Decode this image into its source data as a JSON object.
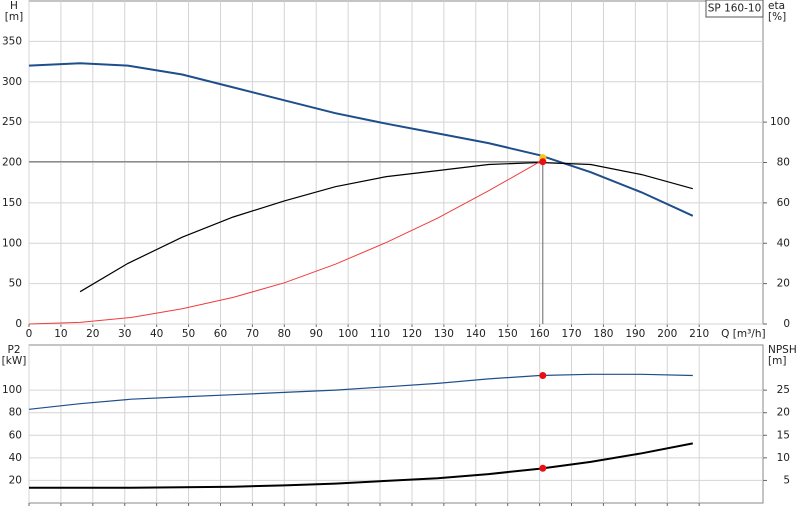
{
  "chart_data": [
    {
      "type": "line",
      "title": "SP 160-10",
      "ylabel": [
        "H",
        "[m]"
      ],
      "y2label": [
        "eta",
        "[%]"
      ],
      "xlabel": "Q [m³/h]",
      "xlim": [
        0,
        230
      ],
      "xticks": [
        0,
        10,
        20,
        30,
        40,
        50,
        60,
        70,
        80,
        90,
        100,
        110,
        120,
        130,
        140,
        150,
        160,
        170,
        180,
        190,
        200,
        210
      ],
      "ylim": [
        0,
        400
      ],
      "yticks": [
        0,
        50,
        100,
        150,
        200,
        250,
        300,
        350
      ],
      "y2lim": [
        0,
        160
      ],
      "y2ticks": [
        0,
        20,
        40,
        60,
        80,
        100
      ],
      "grid": true,
      "show_xtick_labels": true,
      "series": [
        {
          "color": "#1f4e8c",
          "width": 2,
          "x": [
            0,
            16,
            31,
            48,
            64,
            80,
            96,
            112,
            128,
            144,
            160,
            176,
            192,
            208
          ],
          "values": [
            320,
            323,
            320,
            309,
            293,
            277,
            261,
            248,
            236,
            224,
            209,
            188,
            163,
            134
          ]
        },
        {
          "color": "#000000",
          "width": 1.2,
          "axis": "y2",
          "x": [
            16,
            31,
            48,
            64,
            80,
            96,
            112,
            128,
            144,
            160,
            176,
            192,
            208
          ],
          "values": [
            16,
            30,
            43,
            53,
            61,
            68,
            73,
            76,
            79,
            80,
            79,
            74,
            67
          ]
        },
        {
          "color": "#f03c3c",
          "width": 1,
          "x": [
            0,
            16,
            32,
            48,
            64,
            80,
            96,
            112,
            128,
            144,
            161
          ],
          "values": [
            0,
            2,
            8,
            19,
            33,
            51,
            74,
            101,
            131,
            165,
            203
          ]
        }
      ],
      "points": [
        {
          "x": 161,
          "y": 206,
          "color": "#f5c518"
        },
        {
          "x": 161,
          "y": 201,
          "color": "#e81010",
          "guide": true
        }
      ]
    },
    {
      "type": "line",
      "ylabel": [
        "P2",
        "[kW]"
      ],
      "y2label": [
        "NPSH",
        "[m]"
      ],
      "xlim": [
        0,
        230
      ],
      "xticks": [
        0,
        10,
        20,
        30,
        40,
        50,
        60,
        70,
        80,
        90,
        100,
        110,
        120,
        130,
        140,
        150,
        160,
        170,
        180,
        190,
        200,
        210
      ],
      "ylim": [
        0,
        140
      ],
      "yticks": [
        20,
        40,
        60,
        80,
        100
      ],
      "y2lim": [
        0,
        35
      ],
      "y2ticks": [
        5,
        10,
        15,
        20,
        25
      ],
      "grid": true,
      "show_xtick_labels": false,
      "series": [
        {
          "color": "#1f4e8c",
          "width": 1.2,
          "x": [
            0,
            16,
            32,
            48,
            64,
            80,
            96,
            112,
            128,
            144,
            160,
            176,
            192,
            208
          ],
          "values": [
            83,
            88,
            92,
            94,
            96,
            98,
            100,
            103,
            106,
            110,
            113,
            114,
            114,
            113
          ]
        },
        {
          "color": "#000000",
          "width": 2,
          "axis": "y2",
          "x": [
            0,
            16,
            32,
            48,
            64,
            80,
            96,
            112,
            128,
            144,
            160,
            176,
            192,
            208
          ],
          "values": [
            3.4,
            3.4,
            3.4,
            3.5,
            3.6,
            3.9,
            4.3,
            4.9,
            5.5,
            6.4,
            7.6,
            9.1,
            11.0,
            13.2
          ]
        }
      ],
      "points": [
        {
          "x": 161,
          "y": 113,
          "color": "#e81010"
        },
        {
          "x": 161,
          "y": 7.7,
          "color": "#e81010",
          "axis": "y2"
        }
      ]
    }
  ]
}
